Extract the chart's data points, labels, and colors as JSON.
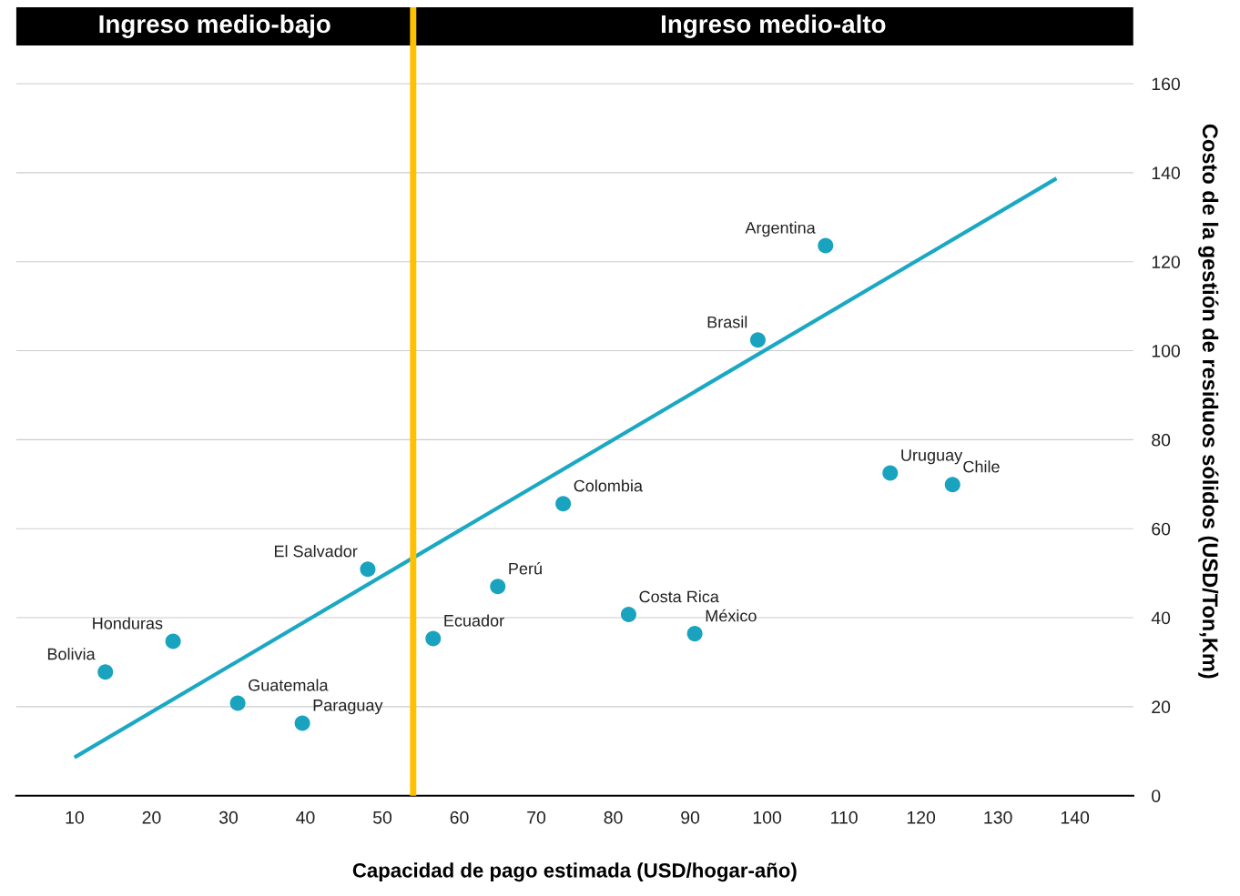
{
  "chart_data": {
    "type": "scatter",
    "xlabel": "Capacidad de pago estimada (USD/hogar-año)",
    "ylabel": "Costo de la gestión de residuos sólidos (USD/Ton,Km)",
    "series": [
      {
        "color": "#1aa3bf",
        "x": [
          14.0,
          22.8,
          31.2,
          39.6,
          48.1,
          56.6,
          65.0,
          73.5,
          82.0,
          90.6,
          98.8,
          107.6,
          116.0,
          124.1
        ],
        "values": [
          27.8,
          34.7,
          20.8,
          16.3,
          50.9,
          35.3,
          47.0,
          65.6,
          40.7,
          36.4,
          102.4,
          123.6,
          72.5,
          69.9
        ]
      },
      {
        "type": "line",
        "marker": "none",
        "color": "#1ba8c2",
        "x": [
          10.2,
          137.4
        ],
        "values": [
          8.8,
          138.5
        ]
      }
    ],
    "annotations": [
      {
        "text": "Bolivia",
        "x": 14.0,
        "y": 27.8
      },
      {
        "text": "Honduras",
        "x": 22.8,
        "y": 34.7
      },
      {
        "text": "Guatemala",
        "x": 31.2,
        "y": 20.8
      },
      {
        "text": "Paraguay",
        "x": 39.6,
        "y": 16.3
      },
      {
        "text": "El Salvador",
        "x": 48.1,
        "y": 50.9
      },
      {
        "text": "Ecuador",
        "x": 56.6,
        "y": 35.3
      },
      {
        "text": "Perú",
        "x": 65.0,
        "y": 47.0
      },
      {
        "text": "Colombia",
        "x": 73.5,
        "y": 65.6
      },
      {
        "text": "Costa Rica",
        "x": 82.0,
        "y": 40.7
      },
      {
        "text": "México",
        "x": 90.6,
        "y": 36.4
      },
      {
        "text": "Brasil",
        "x": 98.8,
        "y": 102.4
      },
      {
        "text": "Argentina",
        "x": 107.6,
        "y": 123.6
      },
      {
        "text": "Uruguay",
        "x": 116.0,
        "y": 72.5
      },
      {
        "text": "Chile",
        "x": 124.1,
        "y": 69.9
      }
    ],
    "ref_lines": [
      {
        "axis": "x",
        "value": 54.0,
        "color": "#ffc000"
      }
    ],
    "bands": [
      {
        "axis": "x",
        "from": 2.4,
        "to": 54.0,
        "label": "Ingreso medio-bajo",
        "color": "#000000"
      },
      {
        "axis": "x",
        "from": 54.0,
        "to": 147.6,
        "label": "Ingreso medio-alto",
        "color": "#000000"
      }
    ],
    "xlim": [
      2.4,
      147.6
    ],
    "ylim": [
      0,
      177.2
    ],
    "xticks": [
      10,
      20,
      30,
      40,
      50,
      60,
      70,
      80,
      90,
      100,
      110,
      120,
      130,
      140
    ],
    "yticks": [
      0,
      20,
      40,
      60,
      80,
      100,
      120,
      140,
      160
    ],
    "grid": "y",
    "marker": "circle",
    "line_style": "solid"
  }
}
